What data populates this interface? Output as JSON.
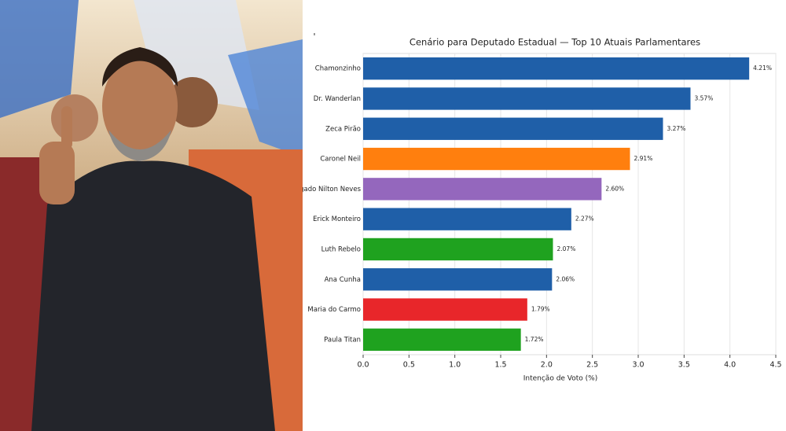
{
  "chart_data": {
    "type": "hbar",
    "title": "Cenário para Deputado Estadual — Top 10 Atuais Parlamentares",
    "x_label": "Intenção de Voto (%)",
    "categories": [
      "Chamonzinho",
      "Dr. Wanderlan",
      "Zeca Pirão",
      "Caronel Neil",
      "Delegado Nilton Neves",
      "Erick Monteiro",
      "Luth Rebelo",
      "Ana Cunha",
      "Maria do Carmo",
      "Paula Titan"
    ],
    "values": [
      4.21,
      3.57,
      3.27,
      2.91,
      2.6,
      2.27,
      2.07,
      2.06,
      1.79,
      1.72
    ],
    "value_labels": [
      "4.21%",
      "3.57%",
      "3.27%",
      "2.91%",
      "2.60%",
      "2.27%",
      "2.07%",
      "2.06%",
      "1.79%",
      "1.72%"
    ],
    "colors": [
      "#1f5fa8",
      "#1f5fa8",
      "#1f5fa8",
      "#ff7f0e",
      "#9467bd",
      "#1f5fa8",
      "#1fa21f",
      "#1f5fa8",
      "#e8262a",
      "#1fa21f"
    ],
    "xlim": [
      0,
      4.5
    ],
    "xticks": [
      {
        "value": 0,
        "label": "0.0"
      },
      0.5,
      {
        "value": 1,
        "label": "1.0"
      },
      1.5,
      {
        "value": 2,
        "label": "2.0"
      },
      2.5,
      {
        "value": 3,
        "label": "3.0"
      },
      3.5,
      {
        "value": 4,
        "label": "4.0"
      },
      4.5
    ],
    "grid": true
  }
}
